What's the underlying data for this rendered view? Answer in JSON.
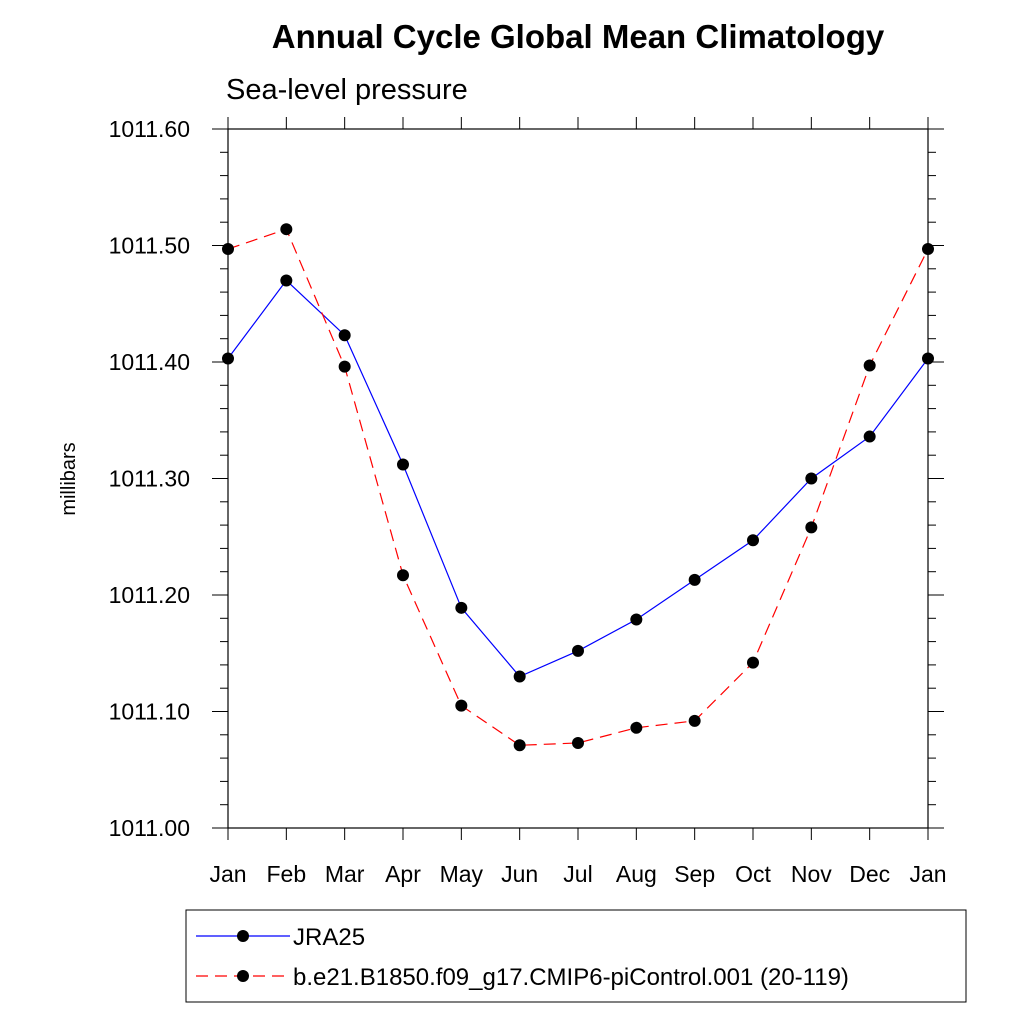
{
  "chart_data": {
    "type": "line",
    "title": "Annual Cycle Global Mean Climatology",
    "subtitle": "Sea-level pressure",
    "xlabel": "",
    "ylabel": "millibars",
    "categories": [
      "Jan",
      "Feb",
      "Mar",
      "Apr",
      "May",
      "Jun",
      "Jul",
      "Aug",
      "Sep",
      "Oct",
      "Nov",
      "Dec",
      "Jan"
    ],
    "ylim": [
      1011.0,
      1011.6
    ],
    "yticks": [
      "1011.00",
      "1011.10",
      "1011.20",
      "1011.30",
      "1011.40",
      "1011.50",
      "1011.60"
    ],
    "grid": false,
    "legend_position": "bottom",
    "series": [
      {
        "name": "JRA25",
        "color": "#0000ff",
        "line_style": "solid",
        "marker": "filled-circle",
        "values": [
          1011.403,
          1011.47,
          1011.423,
          1011.312,
          1011.189,
          1011.13,
          1011.152,
          1011.179,
          1011.213,
          1011.247,
          1011.3,
          1011.336,
          1011.403
        ]
      },
      {
        "name": "b.e21.B1850.f09_g17.CMIP6-piControl.001 (20-119)",
        "color": "#ff0000",
        "line_style": "dashed",
        "marker": "filled-circle",
        "values": [
          1011.497,
          1011.514,
          1011.396,
          1011.217,
          1011.105,
          1011.071,
          1011.073,
          1011.086,
          1011.092,
          1011.142,
          1011.258,
          1011.397,
          1011.497
        ]
      }
    ]
  }
}
